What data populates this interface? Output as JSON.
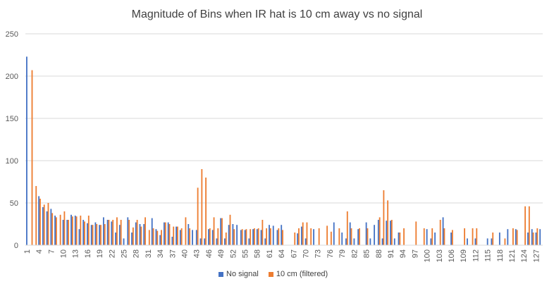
{
  "colors": {
    "no_signal": "#4472C4",
    "ten_cm": "#ED7D31",
    "grid": "#D9D9D9",
    "axis_text": "#595959"
  },
  "chart_data": {
    "type": "bar",
    "title": "Magnitude of Bins when IR hat is 10 cm away vs no signal",
    "xlabel": "",
    "ylabel": "",
    "ylim": [
      0,
      250
    ],
    "yticks": [
      0,
      50,
      100,
      150,
      200,
      250
    ],
    "grid": true,
    "legend_placement": "bottom",
    "x_tick_labels": [
      "1",
      "4",
      "7",
      "10",
      "13",
      "16",
      "19",
      "22",
      "25",
      "28",
      "31",
      "34",
      "37",
      "40",
      "43",
      "46",
      "49",
      "52",
      "55",
      "58",
      "61",
      "64",
      "67",
      "70",
      "73",
      "76",
      "79",
      "82",
      "85",
      "88",
      "91",
      "94",
      "97",
      "100",
      "103",
      "106",
      "109",
      "112",
      "115",
      "118",
      "121",
      "124",
      "127"
    ],
    "categories": [
      1,
      2,
      3,
      4,
      5,
      6,
      7,
      8,
      9,
      10,
      11,
      12,
      13,
      14,
      15,
      16,
      17,
      18,
      19,
      20,
      21,
      22,
      23,
      24,
      25,
      26,
      27,
      28,
      29,
      30,
      31,
      32,
      33,
      34,
      35,
      36,
      37,
      38,
      39,
      40,
      41,
      42,
      43,
      44,
      45,
      46,
      47,
      48,
      49,
      50,
      51,
      52,
      53,
      54,
      55,
      56,
      57,
      58,
      59,
      60,
      61,
      62,
      63,
      64,
      65,
      66,
      67,
      68,
      69,
      70,
      71,
      72,
      73,
      74,
      75,
      76,
      77,
      78,
      79,
      80,
      81,
      82,
      83,
      84,
      85,
      86,
      87,
      88,
      89,
      90,
      91,
      92,
      93,
      94,
      95,
      96,
      97,
      98,
      99,
      100,
      101,
      102,
      103,
      104,
      105,
      106,
      107,
      108,
      109,
      110,
      111,
      112,
      113,
      114,
      115,
      116,
      117,
      118,
      119,
      120,
      121,
      122,
      123,
      124,
      125,
      126,
      127,
      128
    ],
    "series": [
      {
        "name": "No signal",
        "values": [
          223,
          0,
          0,
          58,
          45,
          40,
          43,
          35,
          0,
          30,
          30,
          36,
          35,
          19,
          30,
          26,
          24,
          27,
          24,
          33,
          30,
          28,
          15,
          24,
          8,
          33,
          15,
          27,
          25,
          25,
          0,
          32,
          19,
          12,
          27,
          27,
          10,
          22,
          18,
          0,
          25,
          18,
          18,
          8,
          8,
          19,
          18,
          8,
          32,
          8,
          24,
          25,
          24,
          18,
          18,
          8,
          19,
          19,
          18,
          8,
          24,
          23,
          18,
          24,
          0,
          0,
          0,
          14,
          22,
          8,
          0,
          19,
          0,
          0,
          0,
          0,
          27,
          0,
          15,
          8,
          27,
          8,
          19,
          0,
          27,
          8,
          24,
          30,
          8,
          29,
          29,
          8,
          15,
          0,
          0,
          0,
          0,
          0,
          0,
          19,
          8,
          15,
          0,
          33,
          0,
          15,
          0,
          0,
          0,
          8,
          0,
          8,
          0,
          0,
          8,
          8,
          0,
          15,
          0,
          19,
          0,
          19,
          0,
          0,
          15,
          19,
          15,
          19
        ]
      },
      {
        "name": "10 cm (filtered)",
        "values": [
          0,
          207,
          70,
          55,
          48,
          50,
          38,
          33,
          36,
          40,
          30,
          34,
          34,
          35,
          28,
          35,
          24,
          25,
          24,
          25,
          30,
          30,
          33,
          30,
          0,
          30,
          21,
          30,
          22,
          33,
          18,
          20,
          17,
          18,
          27,
          25,
          22,
          22,
          20,
          33,
          20,
          0,
          68,
          90,
          80,
          20,
          33,
          20,
          32,
          15,
          36,
          19,
          0,
          19,
          19,
          19,
          20,
          20,
          30,
          20,
          20,
          0,
          20,
          18,
          0,
          0,
          15,
          20,
          27,
          27,
          20,
          0,
          20,
          0,
          23,
          16,
          0,
          20,
          0,
          40,
          20,
          0,
          20,
          0,
          20,
          0,
          0,
          33,
          65,
          53,
          30,
          0,
          15,
          20,
          0,
          0,
          28,
          0,
          20,
          0,
          20,
          0,
          30,
          20,
          0,
          18,
          0,
          0,
          20,
          0,
          20,
          20,
          0,
          0,
          0,
          15,
          0,
          0,
          8,
          0,
          20,
          18,
          0,
          46,
          46,
          15,
          20,
          0
        ]
      }
    ]
  }
}
